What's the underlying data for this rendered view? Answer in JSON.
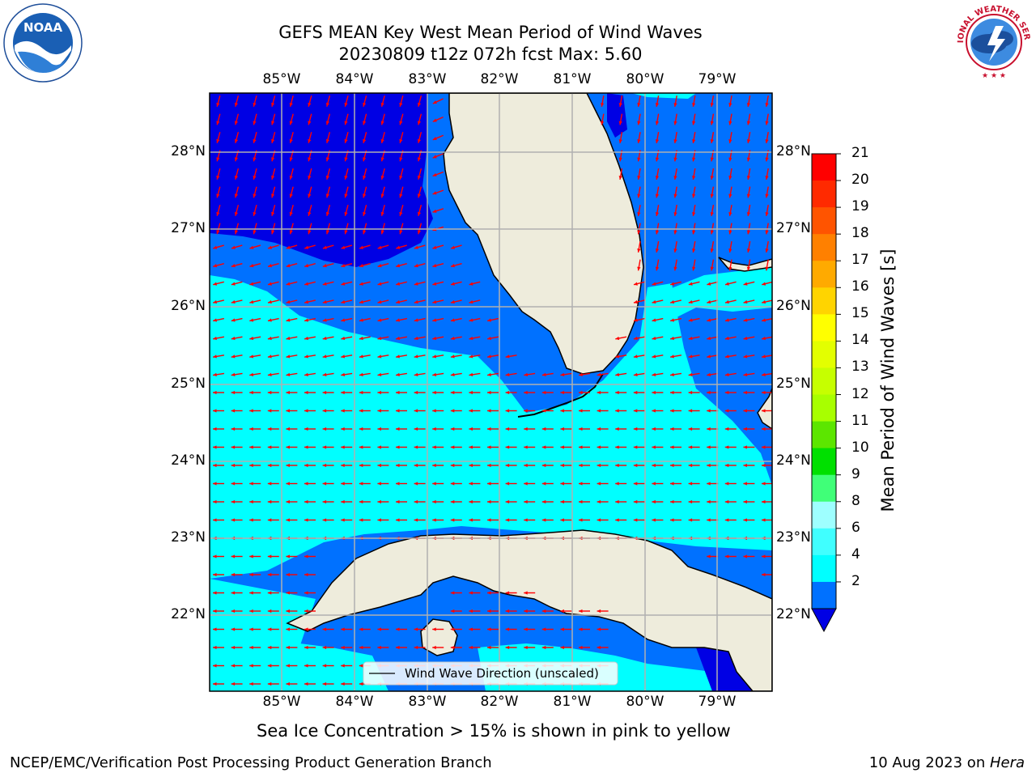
{
  "header": {
    "title_line1": "GEFS MEAN Key West Mean Period of Wind Waves",
    "title_line2": "20230809 t12z 072h fcst   Max: 5.60"
  },
  "map": {
    "lon_labels": [
      "85°W",
      "84°W",
      "83°W",
      "82°W",
      "81°W",
      "80°W",
      "79°W"
    ],
    "lat_labels": [
      "28°N",
      "27°N",
      "26°N",
      "25°N",
      "24°N",
      "23°N",
      "22°N"
    ],
    "legend_text": "Wind Wave Direction (unscaled)",
    "colors": {
      "land": "#eeecdc",
      "band_2": "#0000e4",
      "band_2_4": "#0071ff",
      "band_4_6": "#00ffff",
      "arrow": "#ff0000",
      "grid": "#b0b0b0"
    }
  },
  "colorbar": {
    "label": "Mean Period of Wind Waves [s]",
    "ticks": [
      "21",
      "20",
      "19",
      "18",
      "17",
      "16",
      "15",
      "14",
      "13",
      "12",
      "11",
      "10",
      "9",
      "8",
      "6",
      "4",
      "2"
    ],
    "colors": [
      "#ff0000",
      "#ff2a00",
      "#ff5400",
      "#ff8000",
      "#ffaa00",
      "#ffd400",
      "#ffff00",
      "#e3ff00",
      "#c6ff00",
      "#a8ff00",
      "#5ce600",
      "#00e000",
      "#40ff78",
      "#9effff",
      "#40ffff",
      "#00ffff",
      "#0071ff"
    ],
    "extend_color": "#0000e4"
  },
  "footer": {
    "sea_ice_note": "Sea Ice Concentration > 15% is shown in pink to yellow",
    "credit": "NCEP/EMC/Verification Post Processing Product Generation Branch",
    "date": "10 Aug 2023 on ",
    "machine": "Hera"
  },
  "logos": {
    "left_text": "NOAA",
    "right_text": "NATIONAL WEATHER SERVICE"
  }
}
